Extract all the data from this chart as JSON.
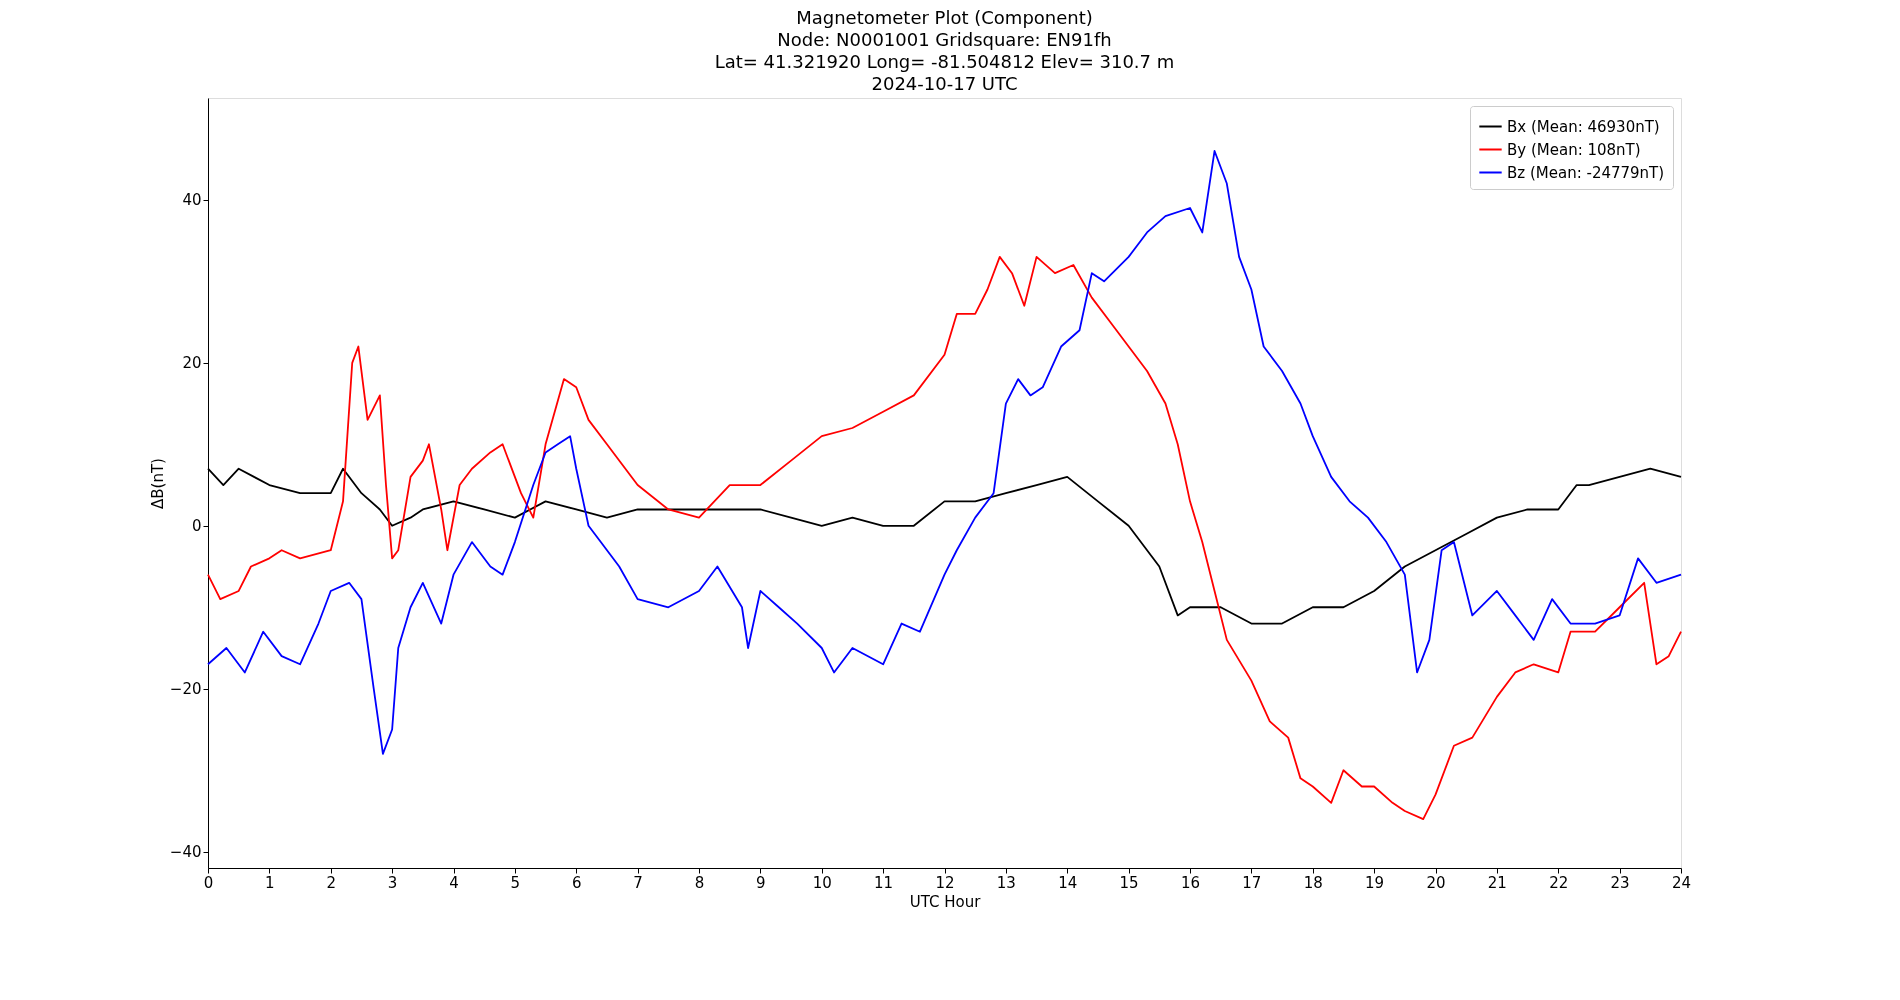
{
  "chart_data": {
    "type": "line",
    "title": "Magnetometer Plot (Component)\nNode:  N0001001     Gridsquare:  EN91fh\nLat= 41.321920    Long= -81.504812    Elev= 310.7 m\n2024-10-17  UTC",
    "xlabel": "UTC Hour",
    "ylabel": "ΔB(nT)",
    "xlim": [
      0,
      24
    ],
    "xticks": [
      0,
      1,
      2,
      3,
      4,
      5,
      6,
      7,
      8,
      9,
      10,
      11,
      12,
      13,
      14,
      15,
      16,
      17,
      18,
      19,
      20,
      21,
      22,
      23,
      24
    ],
    "ylim": [
      -42,
      52.5
    ],
    "yticks": [
      -40,
      -20,
      0,
      20,
      40
    ],
    "grid": false,
    "legend": "top right",
    "line_style": "solid",
    "marker": "none",
    "series": [
      {
        "name": "Bx (Mean: 46930nT)",
        "color": "#000000",
        "x": [
          0,
          0.25,
          0.5,
          0.75,
          1,
          1.5,
          2,
          2.2,
          2.5,
          2.8,
          3,
          3.3,
          3.5,
          4,
          4.5,
          5,
          5.5,
          6,
          6.5,
          7,
          7.5,
          8,
          8.5,
          9,
          9.5,
          10,
          10.5,
          11,
          11.5,
          12,
          12.5,
          13,
          13.5,
          14,
          14.5,
          15,
          15.5,
          15.8,
          16,
          16.5,
          17,
          17.5,
          18,
          18.5,
          19,
          19.5,
          20,
          20.5,
          21,
          21.5,
          22,
          22.3,
          22.5,
          23,
          23.5,
          24
        ],
        "values": [
          7,
          5,
          7,
          6,
          5,
          4,
          4,
          7,
          4,
          2,
          0,
          1,
          2,
          3,
          2,
          1,
          3,
          2,
          1,
          2,
          2,
          2,
          2,
          2,
          1,
          0,
          1,
          0,
          0,
          3,
          3,
          4,
          5,
          6,
          3,
          0,
          -5,
          -11,
          -10,
          -10,
          -12,
          -12,
          -10,
          -10,
          -8,
          -5,
          -3,
          -1,
          1,
          2,
          2,
          5,
          5,
          6,
          7,
          6
        ]
      },
      {
        "name": "By (Mean: 108nT)",
        "color": "#ff0000",
        "x": [
          0,
          0.2,
          0.5,
          0.7,
          1,
          1.2,
          1.5,
          2,
          2.2,
          2.35,
          2.45,
          2.6,
          2.8,
          2.9,
          3.0,
          3.1,
          3.3,
          3.5,
          3.6,
          3.8,
          3.9,
          4.1,
          4.3,
          4.6,
          4.8,
          5.1,
          5.3,
          5.5,
          5.8,
          6,
          6.2,
          6.5,
          7,
          7.5,
          8,
          8.5,
          9,
          9.5,
          10,
          10.5,
          11,
          11.5,
          12,
          12.2,
          12.5,
          12.7,
          12.9,
          13.1,
          13.3,
          13.5,
          13.8,
          14.1,
          14.4,
          14.7,
          15.0,
          15.3,
          15.6,
          15.8,
          16,
          16.2,
          16.4,
          16.6,
          17,
          17.3,
          17.6,
          17.8,
          18,
          18.3,
          18.5,
          18.8,
          19,
          19.3,
          19.5,
          19.8,
          20,
          20.3,
          20.6,
          21,
          21.3,
          21.6,
          22,
          22.2,
          22.6,
          23,
          23.4,
          23.6,
          23.8,
          24
        ],
        "values": [
          -6,
          -9,
          -8,
          -5,
          -4,
          -3,
          -4,
          -3,
          3,
          20,
          22,
          13,
          16,
          5,
          -4,
          -3,
          6,
          8,
          10,
          2,
          -3,
          5,
          7,
          9,
          10,
          4,
          1,
          10,
          18,
          17,
          13,
          10,
          5,
          2,
          1,
          5,
          5,
          8,
          11,
          12,
          14,
          16,
          21,
          26,
          26,
          29,
          33,
          31,
          27,
          33,
          31,
          32,
          28,
          25,
          22,
          19,
          15,
          10,
          3,
          -2,
          -8,
          -14,
          -19,
          -24,
          -26,
          -31,
          -32,
          -34,
          -30,
          -32,
          -32,
          -34,
          -35,
          -36,
          -33,
          -27,
          -26,
          -21,
          -18,
          -17,
          -18,
          -13,
          -13,
          -10,
          -7,
          -17,
          -16,
          -13
        ]
      },
      {
        "name": "Bz (Mean: -24779nT)",
        "color": "#0000ff",
        "x": [
          0,
          0.3,
          0.6,
          0.9,
          1.2,
          1.5,
          1.8,
          2,
          2.3,
          2.5,
          2.7,
          2.85,
          3.0,
          3.1,
          3.3,
          3.5,
          3.8,
          4.0,
          4.3,
          4.6,
          4.8,
          5.0,
          5.3,
          5.5,
          5.7,
          5.9,
          6.0,
          6.2,
          6.4,
          6.7,
          7,
          7.5,
          8,
          8.3,
          8.7,
          8.8,
          9,
          9.3,
          9.6,
          10,
          10.2,
          10.5,
          11,
          11.3,
          11.6,
          12,
          12.2,
          12.5,
          12.8,
          13.0,
          13.2,
          13.4,
          13.6,
          13.9,
          14.2,
          14.4,
          14.6,
          15,
          15.3,
          15.6,
          16,
          16.2,
          16.4,
          16.6,
          16.8,
          17,
          17.2,
          17.5,
          17.8,
          18,
          18.3,
          18.6,
          18.9,
          19.2,
          19.5,
          19.7,
          19.9,
          20.1,
          20.3,
          20.6,
          21,
          21.3,
          21.6,
          21.9,
          22.2,
          22.6,
          23,
          23.3,
          23.6,
          24
        ],
        "values": [
          -17,
          -15,
          -18,
          -13,
          -16,
          -17,
          -12,
          -8,
          -7,
          -9,
          -20,
          -28,
          -25,
          -15,
          -10,
          -7,
          -12,
          -6,
          -2,
          -5,
          -6,
          -2,
          5,
          9,
          10,
          11,
          7,
          0,
          -2,
          -5,
          -9,
          -10,
          -8,
          -5,
          -10,
          -15,
          -8,
          -10,
          -12,
          -15,
          -18,
          -15,
          -17,
          -12,
          -13,
          -6,
          -3,
          1,
          4,
          15,
          18,
          16,
          17,
          22,
          24,
          31,
          30,
          33,
          36,
          38,
          39,
          36,
          46,
          42,
          33,
          29,
          22,
          19,
          15,
          11,
          6,
          3,
          1,
          -2,
          -6,
          -18,
          -14,
          -3,
          -2,
          -11,
          -8,
          -11,
          -14,
          -9,
          -12,
          -12,
          -11,
          -4,
          -7,
          -6
        ]
      }
    ]
  }
}
